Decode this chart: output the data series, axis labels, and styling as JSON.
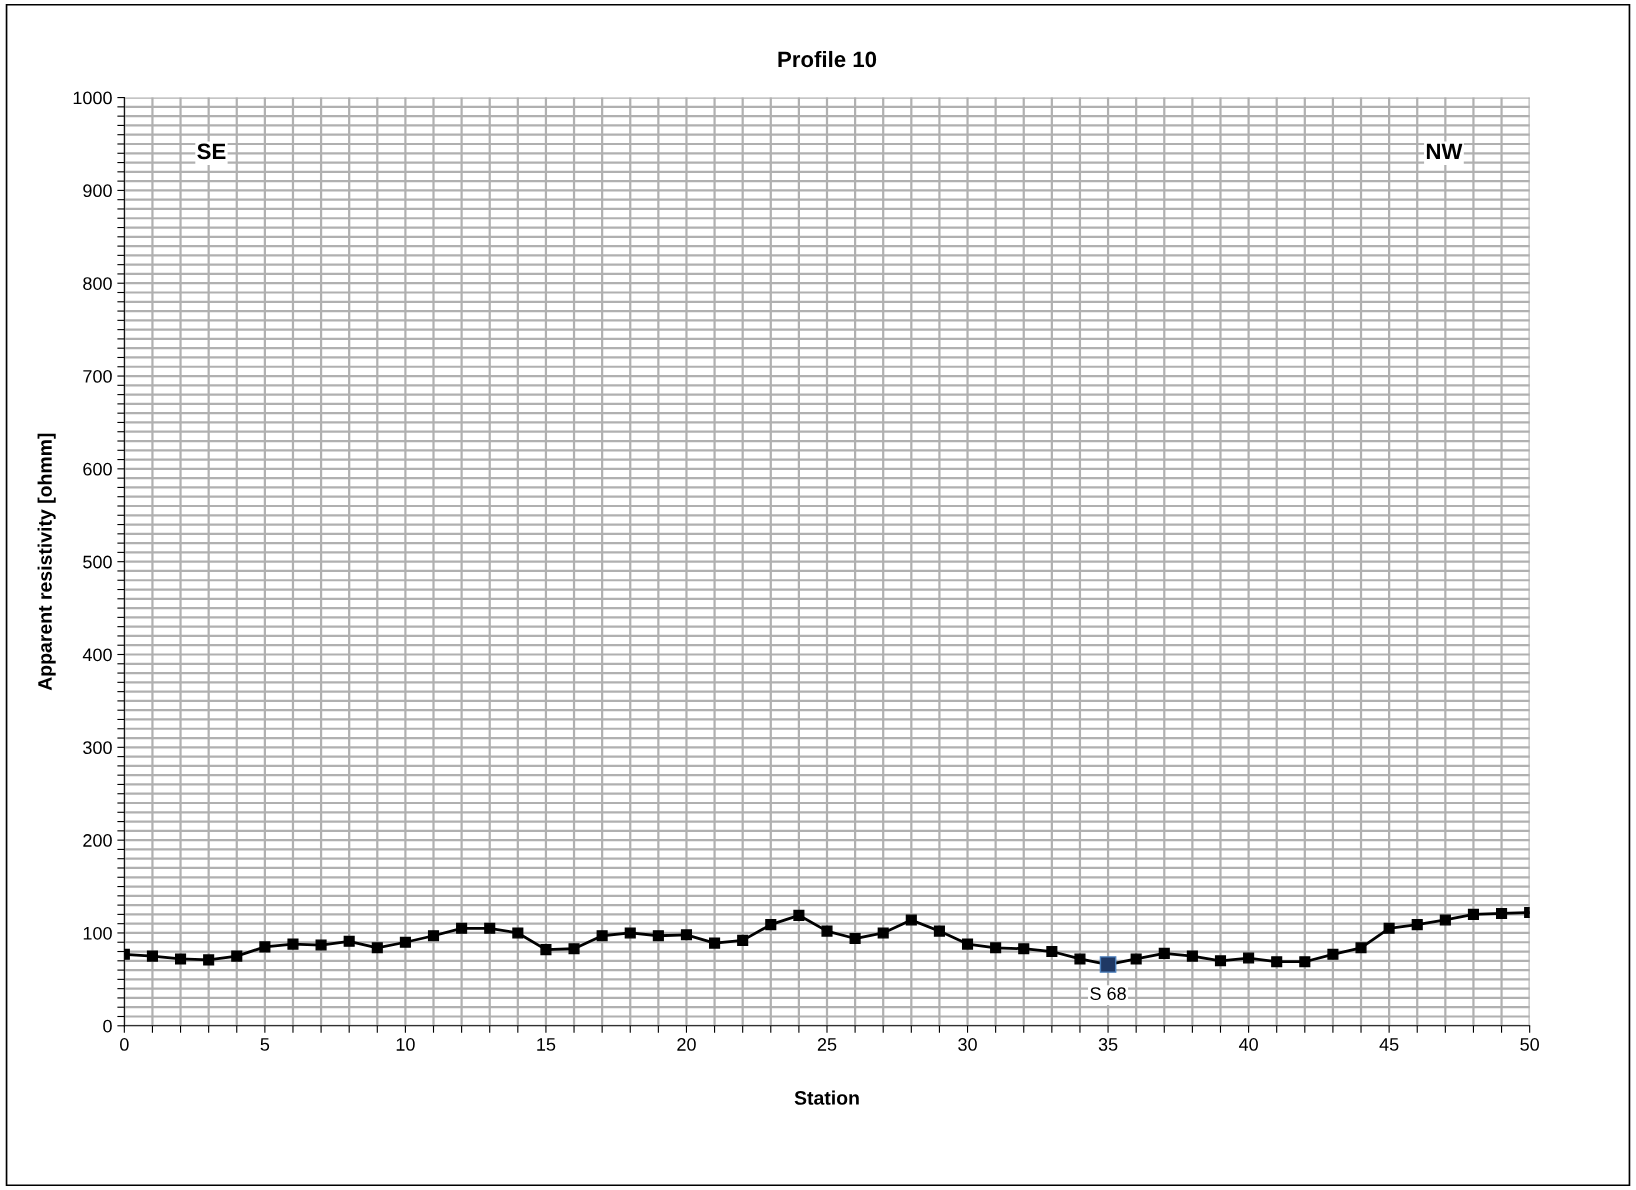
{
  "chart_data": {
    "type": "line",
    "title": "Profile 10",
    "xlabel": "Station",
    "ylabel": "Apparent resistivity [ohmm]",
    "x": [
      0,
      1,
      2,
      3,
      4,
      5,
      6,
      7,
      8,
      9,
      10,
      11,
      12,
      13,
      14,
      15,
      16,
      17,
      18,
      19,
      20,
      21,
      22,
      23,
      24,
      25,
      26,
      27,
      28,
      29,
      30,
      31,
      32,
      33,
      34,
      35,
      36,
      37,
      38,
      39,
      40,
      41,
      42,
      43,
      44,
      45,
      46,
      47,
      48,
      49,
      50
    ],
    "series": [
      {
        "color": "#000000",
        "colors": [
          "#000000",
          "#000000",
          "#000000",
          "#000000",
          "#000000",
          "#000000",
          "#000000",
          "#000000",
          "#000000",
          "#000000",
          "#000000",
          "#000000",
          "#000000",
          "#000000",
          "#000000",
          "#000000",
          "#000000",
          "#000000",
          "#000000",
          "#000000",
          "#000000",
          "#000000",
          "#000000",
          "#000000",
          "#000000",
          "#000000",
          "#000000",
          "#000000",
          "#000000",
          "#000000",
          "#000000",
          "#000000",
          "#000000",
          "#000000",
          "#000000",
          "#1f3864",
          "#000000",
          "#000000",
          "#000000",
          "#000000",
          "#000000",
          "#000000",
          "#000000",
          "#000000",
          "#000000",
          "#000000",
          "#000000",
          "#000000",
          "#000000",
          "#000000",
          "#000000"
        ],
        "values": [
          77,
          75,
          72,
          71,
          75,
          85,
          88,
          87,
          91,
          84,
          90,
          97,
          105,
          105,
          100,
          82,
          83,
          97,
          100,
          97,
          98,
          89,
          92,
          109,
          119,
          102,
          94,
          100,
          114,
          102,
          88,
          84,
          83,
          80,
          72,
          66,
          72,
          78,
          75,
          70,
          73,
          69,
          69,
          77,
          84,
          105,
          109,
          114,
          120,
          121,
          122
        ]
      }
    ],
    "annotations": [
      "SE",
      "NW",
      {
        "text": "S 68",
        "x": 35,
        "y": 66
      }
    ],
    "xlim": [
      0,
      50
    ],
    "ylim": [
      0,
      1000
    ],
    "xticks": [
      0,
      {
        "value": 1,
        "label": null
      },
      {
        "value": 2,
        "label": null
      },
      {
        "value": 3,
        "label": null
      },
      {
        "value": 4,
        "label": null
      },
      5,
      {
        "value": 6,
        "label": null
      },
      {
        "value": 7,
        "label": null
      },
      {
        "value": 8,
        "label": null
      },
      {
        "value": 9,
        "label": null
      },
      10,
      {
        "value": 11,
        "label": null
      },
      {
        "value": 12,
        "label": null
      },
      {
        "value": 13,
        "label": null
      },
      {
        "value": 14,
        "label": null
      },
      15,
      {
        "value": 16,
        "label": null
      },
      {
        "value": 17,
        "label": null
      },
      {
        "value": 18,
        "label": null
      },
      {
        "value": 19,
        "label": null
      },
      20,
      {
        "value": 21,
        "label": null
      },
      {
        "value": 22,
        "label": null
      },
      {
        "value": 23,
        "label": null
      },
      {
        "value": 24,
        "label": null
      },
      25,
      {
        "value": 26,
        "label": null
      },
      {
        "value": 27,
        "label": null
      },
      {
        "value": 28,
        "label": null
      },
      {
        "value": 29,
        "label": null
      },
      30,
      {
        "value": 31,
        "label": null
      },
      {
        "value": 32,
        "label": null
      },
      {
        "value": 33,
        "label": null
      },
      {
        "value": 34,
        "label": null
      },
      35,
      {
        "value": 36,
        "label": null
      },
      {
        "value": 37,
        "label": null
      },
      {
        "value": 38,
        "label": null
      },
      {
        "value": 39,
        "label": null
      },
      40,
      {
        "value": 41,
        "label": null
      },
      {
        "value": 42,
        "label": null
      },
      {
        "value": 43,
        "label": null
      },
      {
        "value": 44,
        "label": null
      },
      45,
      {
        "value": 46,
        "label": null
      },
      {
        "value": 47,
        "label": null
      },
      {
        "value": 48,
        "label": null
      },
      {
        "value": 49,
        "label": null
      },
      50
    ],
    "yticks": [
      0,
      {
        "value": 10,
        "label": null
      },
      {
        "value": 20,
        "label": null
      },
      {
        "value": 30,
        "label": null
      },
      {
        "value": 40,
        "label": null
      },
      {
        "value": 50,
        "label": null
      },
      {
        "value": 60,
        "label": null
      },
      {
        "value": 70,
        "label": null
      },
      {
        "value": 80,
        "label": null
      },
      {
        "value": 90,
        "label": null
      },
      100,
      {
        "value": 110,
        "label": null
      },
      {
        "value": 120,
        "label": null
      },
      {
        "value": 130,
        "label": null
      },
      {
        "value": 140,
        "label": null
      },
      {
        "value": 150,
        "label": null
      },
      {
        "value": 160,
        "label": null
      },
      {
        "value": 170,
        "label": null
      },
      {
        "value": 180,
        "label": null
      },
      {
        "value": 190,
        "label": null
      },
      200,
      {
        "value": 210,
        "label": null
      },
      {
        "value": 220,
        "label": null
      },
      {
        "value": 230,
        "label": null
      },
      {
        "value": 240,
        "label": null
      },
      {
        "value": 250,
        "label": null
      },
      {
        "value": 260,
        "label": null
      },
      {
        "value": 270,
        "label": null
      },
      {
        "value": 280,
        "label": null
      },
      {
        "value": 290,
        "label": null
      },
      300,
      {
        "value": 310,
        "label": null
      },
      {
        "value": 320,
        "label": null
      },
      {
        "value": 330,
        "label": null
      },
      {
        "value": 340,
        "label": null
      },
      {
        "value": 350,
        "label": null
      },
      {
        "value": 360,
        "label": null
      },
      {
        "value": 370,
        "label": null
      },
      {
        "value": 380,
        "label": null
      },
      {
        "value": 390,
        "label": null
      },
      400,
      {
        "value": 410,
        "label": null
      },
      {
        "value": 420,
        "label": null
      },
      {
        "value": 430,
        "label": null
      },
      {
        "value": 440,
        "label": null
      },
      {
        "value": 450,
        "label": null
      },
      {
        "value": 460,
        "label": null
      },
      {
        "value": 470,
        "label": null
      },
      {
        "value": 480,
        "label": null
      },
      {
        "value": 490,
        "label": null
      },
      500,
      {
        "value": 510,
        "label": null
      },
      {
        "value": 520,
        "label": null
      },
      {
        "value": 530,
        "label": null
      },
      {
        "value": 540,
        "label": null
      },
      {
        "value": 550,
        "label": null
      },
      {
        "value": 560,
        "label": null
      },
      {
        "value": 570,
        "label": null
      },
      {
        "value": 580,
        "label": null
      },
      {
        "value": 590,
        "label": null
      },
      600,
      {
        "value": 610,
        "label": null
      },
      {
        "value": 620,
        "label": null
      },
      {
        "value": 630,
        "label": null
      },
      {
        "value": 640,
        "label": null
      },
      {
        "value": 650,
        "label": null
      },
      {
        "value": 660,
        "label": null
      },
      {
        "value": 670,
        "label": null
      },
      {
        "value": 680,
        "label": null
      },
      {
        "value": 690,
        "label": null
      },
      700,
      {
        "value": 710,
        "label": null
      },
      {
        "value": 720,
        "label": null
      },
      {
        "value": 730,
        "label": null
      },
      {
        "value": 740,
        "label": null
      },
      {
        "value": 750,
        "label": null
      },
      {
        "value": 760,
        "label": null
      },
      {
        "value": 770,
        "label": null
      },
      {
        "value": 780,
        "label": null
      },
      {
        "value": 790,
        "label": null
      },
      800,
      {
        "value": 810,
        "label": null
      },
      {
        "value": 820,
        "label": null
      },
      {
        "value": 830,
        "label": null
      },
      {
        "value": 840,
        "label": null
      },
      {
        "value": 850,
        "label": null
      },
      {
        "value": 860,
        "label": null
      },
      {
        "value": 870,
        "label": null
      },
      {
        "value": 880,
        "label": null
      },
      {
        "value": 890,
        "label": null
      },
      900,
      {
        "value": 910,
        "label": null
      },
      {
        "value": 920,
        "label": null
      },
      {
        "value": 930,
        "label": null
      },
      {
        "value": 940,
        "label": null
      },
      {
        "value": 950,
        "label": null
      },
      {
        "value": 960,
        "label": null
      },
      {
        "value": 970,
        "label": null
      },
      {
        "value": 980,
        "label": null
      },
      {
        "value": 990,
        "label": null
      },
      1000
    ],
    "grid": true,
    "legend": false,
    "marker": "square",
    "line_style": "solid"
  }
}
